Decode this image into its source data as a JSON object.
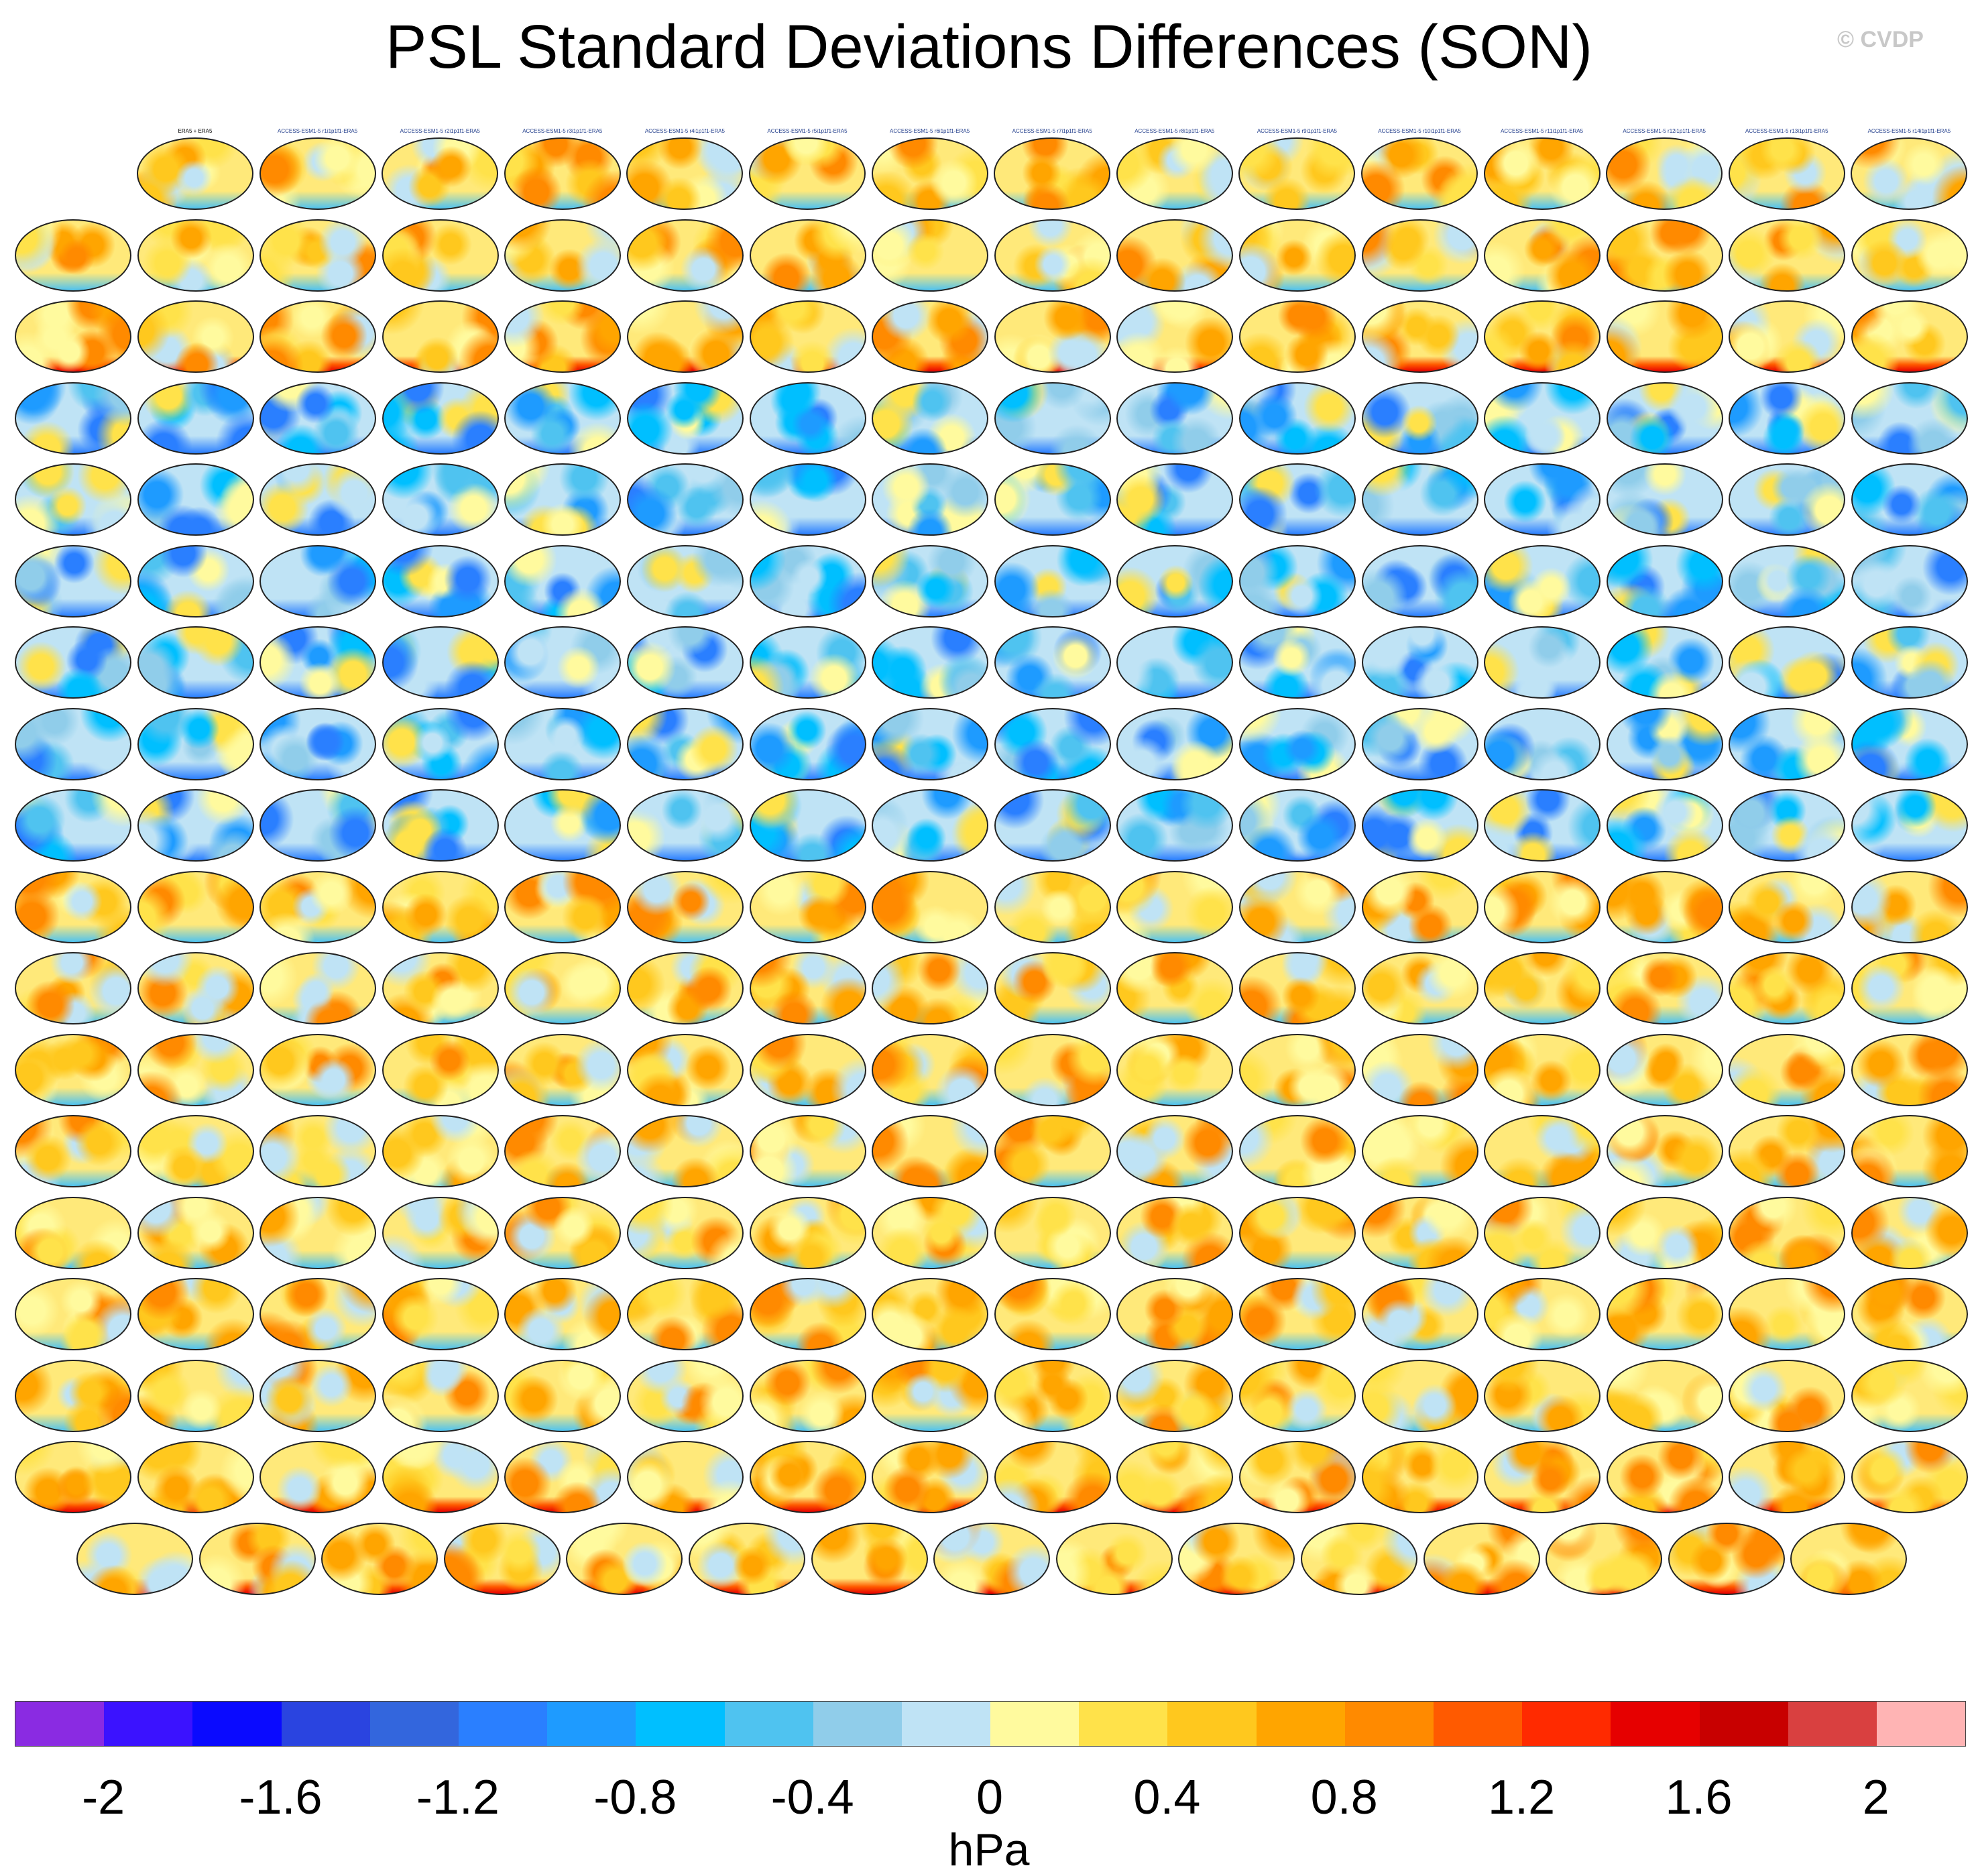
{
  "title": "PSL Standard Deviations Differences (SON)",
  "watermark": "© CVDP",
  "units": "hPa",
  "colorbar": {
    "colors": [
      "#8a2be2",
      "#3b12ff",
      "#0a0aff",
      "#2a44e0",
      "#3366dd",
      "#2a7fff",
      "#1e9bff",
      "#00bfff",
      "#4fc3f0",
      "#90cdea",
      "#bfe3f5",
      "#fffa9e",
      "#ffe24a",
      "#ffc81e",
      "#ffa500",
      "#ff8a00",
      "#ff5a00",
      "#ff2a00",
      "#e60000",
      "#c80000",
      "#d94040",
      "#ffb4b4"
    ],
    "ticks": [
      "-2",
      "-1.6",
      "-1.2",
      "-0.8",
      "-0.4",
      "0",
      "0.4",
      "0.8",
      "1.2",
      "1.6",
      "2"
    ]
  },
  "panels": {
    "row_counts": [
      15,
      16,
      16,
      16,
      16,
      16,
      16,
      16,
      16,
      16,
      16,
      16,
      16,
      16,
      16,
      16,
      16,
      15
    ],
    "label_colors": {
      "access": "#1f3b8a",
      "canesm": "#5a7fd6",
      "cesm1": "#c84040",
      "cesm2": "#b070c8",
      "era5": "#000000"
    },
    "labels": [
      "ERA5 + ERA5",
      "ACCESS-ESM1-5 r1i1p1f1-ERA5",
      "ACCESS-ESM1-5 r2i1p1f1-ERA5",
      "ACCESS-ESM1-5 r3i1p1f1-ERA5",
      "ACCESS-ESM1-5 r4i1p1f1-ERA5",
      "ACCESS-ESM1-5 r5i1p1f1-ERA5",
      "ACCESS-ESM1-5 r6i1p1f1-ERA5",
      "ACCESS-ESM1-5 r7i1p1f1-ERA5",
      "ACCESS-ESM1-5 r8i1p1f1-ERA5",
      "ACCESS-ESM1-5 r9i1p1f1-ERA5",
      "ACCESS-ESM1-5 r10i1p1f1-ERA5",
      "ACCESS-ESM1-5 r11i1p1f1-ERA5",
      "ACCESS-ESM1-5 r12i1p1f1-ERA5",
      "ACCESS-ESM1-5 r13i1p1f1-ERA5",
      "ACCESS-ESM1-5 r14i1p1f1-ERA5"
    ]
  }
}
